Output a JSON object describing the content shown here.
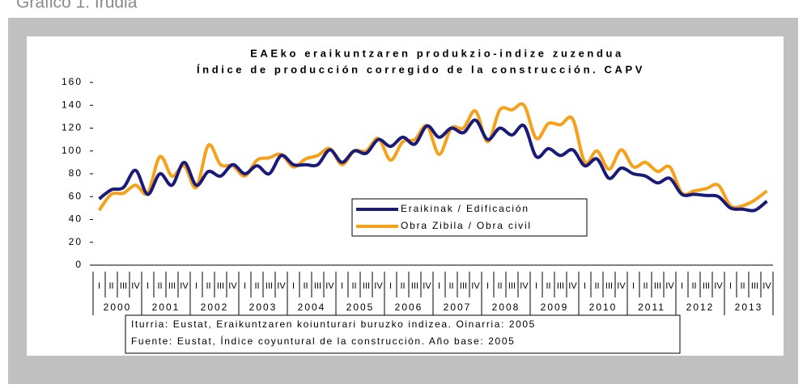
{
  "heading": "Gráfico 1. Irudia",
  "chart_data": {
    "type": "line",
    "title": [
      "EAEko eraikuntzaren produkzio-indize zuzendua",
      "Índice de producción corregido de la construcción. CAPV"
    ],
    "categories": [
      "I",
      "II",
      "III",
      "IV",
      "I",
      "II",
      "III",
      "IV",
      "I",
      "II",
      "III",
      "IV",
      "I",
      "II",
      "III",
      "IV",
      "I",
      "II",
      "III",
      "IV",
      "I",
      "II",
      "III",
      "IV",
      "I",
      "II",
      "III",
      "IV",
      "I",
      "II",
      "III",
      "IV",
      "I",
      "II",
      "III",
      "IV",
      "I",
      "II",
      "III",
      "IV",
      "I",
      "II",
      "III",
      "IV",
      "I",
      "II",
      "III",
      "IV",
      "I",
      "II",
      "III",
      "IV",
      "I",
      "II",
      "III",
      "IV"
    ],
    "years": [
      "2000",
      "2001",
      "2002",
      "2003",
      "2004",
      "2005",
      "2006",
      "2007",
      "2008",
      "2009",
      "2010",
      "2011",
      "2012",
      "2013"
    ],
    "series": [
      {
        "name": "Eraikinak / Edificación",
        "color": "#1a1a7a",
        "values": [
          58,
          66,
          68,
          83,
          62,
          80,
          70,
          90,
          70,
          82,
          78,
          88,
          80,
          87,
          80,
          96,
          88,
          88,
          88,
          101,
          90,
          100,
          98,
          110,
          104,
          112,
          106,
          122,
          112,
          120,
          116,
          127,
          110,
          120,
          114,
          122,
          95,
          102,
          96,
          101,
          87,
          93,
          76,
          85,
          80,
          78,
          72,
          76,
          62,
          62,
          61,
          60,
          50,
          49,
          48,
          56
        ]
      },
      {
        "name": "Obra Zibila / Obra civil",
        "color": "#f7a11a",
        "values": [
          48,
          62,
          63,
          70,
          63,
          95,
          78,
          87,
          68,
          105,
          88,
          87,
          78,
          92,
          94,
          97,
          86,
          93,
          96,
          102,
          88,
          100,
          100,
          111,
          92,
          108,
          110,
          122,
          97,
          120,
          120,
          135,
          108,
          136,
          136,
          140,
          111,
          124,
          123,
          128,
          90,
          100,
          84,
          101,
          86,
          90,
          82,
          86,
          63,
          65,
          67,
          70,
          52,
          52,
          57,
          65
        ]
      }
    ],
    "ylim": [
      0,
      160
    ],
    "yticks": [
      0,
      20,
      40,
      60,
      80,
      100,
      120,
      140,
      160
    ],
    "source": [
      "Iturria: Eustat, Eraikuntzaren koiunturari buruzko indizea. Oinarria: 2005",
      "Fuente: Eustat, Índice coyuntural de la construcción. Año base: 2005"
    ]
  }
}
